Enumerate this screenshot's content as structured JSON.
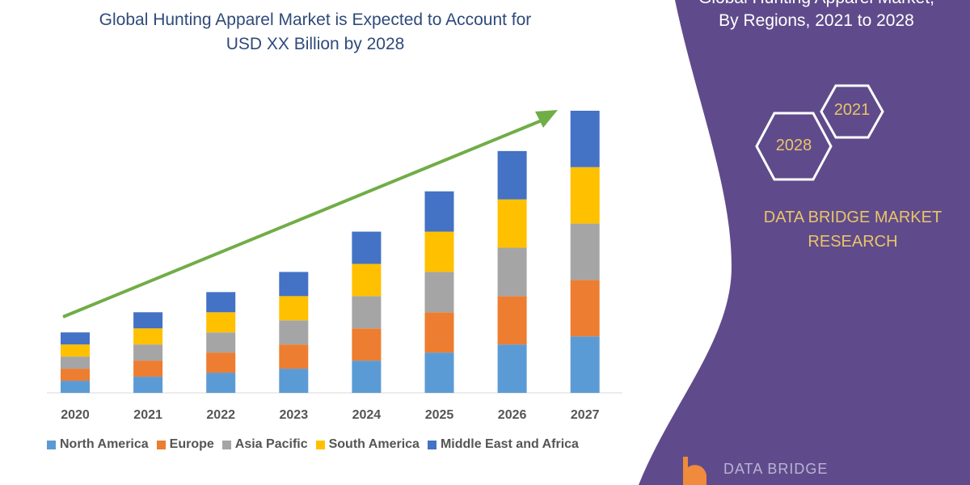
{
  "title": "Global Hunting Apparel Market is Expected to Account for USD XX Billion by 2028",
  "title_lines": [
    "Global Hunting Apparel Market is Expected to Account for",
    "USD XX Billion by 2028"
  ],
  "side_panel": {
    "title_lines": [
      "Global Hunting Apparel Market,",
      "By Regions, 2021 to 2028"
    ],
    "hex_labels": [
      "2021",
      "2028"
    ],
    "brand_lines": [
      "DATA BRIDGE MARKET",
      "RESEARCH"
    ],
    "logo_text": "DATA BRIDGE",
    "panel_color": "#5f4b8b",
    "accent_color": "#e9c46a"
  },
  "chart_data": {
    "type": "bar",
    "stacked": true,
    "title": "Global Hunting Apparel Market is Expected to Account for USD XX Billion by 2028",
    "categories": [
      "2020",
      "2021",
      "2022",
      "2023",
      "2024",
      "2025",
      "2026",
      "2027"
    ],
    "series": [
      {
        "name": "North America",
        "color": "#5b9bd5",
        "values": [
          1.5,
          2,
          2.5,
          3,
          4,
          5,
          6,
          7
        ]
      },
      {
        "name": "Europe",
        "color": "#ed7d31",
        "values": [
          1.5,
          2,
          2.5,
          3,
          4,
          5,
          6,
          7
        ]
      },
      {
        "name": "Asia Pacific",
        "color": "#a5a5a5",
        "values": [
          1.5,
          2,
          2.5,
          3,
          4,
          5,
          6,
          7
        ]
      },
      {
        "name": "South America",
        "color": "#ffc000",
        "values": [
          1.5,
          2,
          2.5,
          3,
          4,
          5,
          6,
          7
        ]
      },
      {
        "name": "Middle East and Africa",
        "color": "#4472c4",
        "values": [
          1.5,
          2,
          2.5,
          3,
          4,
          5,
          6,
          7
        ]
      }
    ],
    "ylim": [
      0,
      35
    ],
    "y_axis_visible": false,
    "grid": false,
    "legend": "bottom",
    "trend_arrow_color": "#70ad47"
  }
}
